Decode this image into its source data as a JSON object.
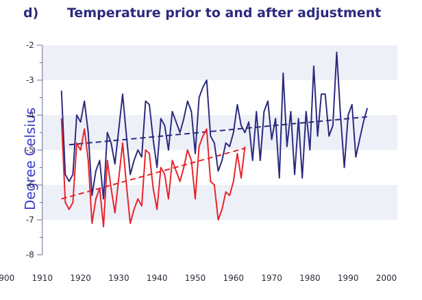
{
  "panel_label": "d)",
  "chart_data": {
    "type": "line",
    "title": "Temperature prior to and after adjustment",
    "xlabel": "",
    "ylabel": "Degree Celsius",
    "xlim": [
      1900,
      2000
    ],
    "ylim": [
      -8,
      -2
    ],
    "x_ticks": [
      1900,
      1910,
      1920,
      1930,
      1940,
      1950,
      1960,
      1970,
      1980,
      1990,
      2000
    ],
    "y_ticks": [
      -8,
      -7,
      -6,
      -5,
      -4,
      -3,
      -2
    ],
    "x_tick_labels": [
      "1900",
      "1910",
      "1920",
      "1930",
      "1940",
      "1950",
      "1960",
      "1970",
      "1980",
      "1990",
      "2000"
    ],
    "y_tick_labels": [
      "-8",
      "-7",
      "-6",
      "-5",
      "-4",
      "-3",
      "-2"
    ],
    "background_bands": true,
    "grid": false,
    "colors": {
      "adjusted": "#2b2a7e",
      "raw": "#e8232a",
      "band": "#eef0f8",
      "axis": "#6d6d9a"
    },
    "series": [
      {
        "color": "#2b2a7e",
        "x": [
          1915,
          1916,
          1917,
          1918,
          1919,
          1920,
          1921,
          1922,
          1923,
          1924,
          1925,
          1926,
          1927,
          1928,
          1929,
          1930,
          1931,
          1932,
          1933,
          1934,
          1935,
          1936,
          1937,
          1938,
          1939,
          1940,
          1941,
          1942,
          1943,
          1944,
          1945,
          1946,
          1947,
          1948,
          1949,
          1950,
          1951,
          1952,
          1953,
          1954,
          1955,
          1956,
          1957,
          1958,
          1959,
          1960,
          1961,
          1962,
          1963,
          1964,
          1965,
          1966,
          1967,
          1968,
          1969,
          1970,
          1971,
          1972,
          1973,
          1974,
          1975,
          1976,
          1977,
          1978,
          1979,
          1980,
          1981,
          1982,
          1983,
          1984,
          1985,
          1986,
          1987,
          1988,
          1989,
          1990,
          1991,
          1992,
          1993,
          1994,
          1995
        ],
        "values": [
          -3.3,
          -5.7,
          -5.9,
          -5.7,
          -4.0,
          -4.2,
          -3.6,
          -4.5,
          -6.3,
          -5.6,
          -5.3,
          -6.4,
          -4.5,
          -4.8,
          -5.4,
          -4.4,
          -3.4,
          -4.6,
          -5.7,
          -5.3,
          -5.0,
          -5.2,
          -3.6,
          -3.7,
          -4.7,
          -5.5,
          -4.1,
          -4.3,
          -5.0,
          -3.9,
          -4.2,
          -4.5,
          -4.1,
          -3.6,
          -3.9,
          -5.1,
          -3.5,
          -3.2,
          -3.0,
          -4.6,
          -4.8,
          -5.6,
          -5.3,
          -4.8,
          -4.9,
          -4.5,
          -3.7,
          -4.3,
          -4.5,
          -4.2,
          -5.3,
          -3.9,
          -5.3,
          -3.9,
          -3.6,
          -4.7,
          -4.1,
          -5.8,
          -2.8,
          -4.9,
          -3.9,
          -5.7,
          -4.1,
          -5.8,
          -3.9,
          -5.0,
          -2.6,
          -4.6,
          -3.4,
          -3.4,
          -4.6,
          -4.3,
          -2.2,
          -4.0,
          -5.5,
          -4.0,
          -3.7,
          -5.2,
          -4.7,
          -4.2,
          -3.8
        ]
      },
      {
        "color": "#e8232a",
        "x": [
          1915,
          1916,
          1917,
          1918,
          1919,
          1920,
          1921,
          1922,
          1923,
          1924,
          1925,
          1926,
          1927,
          1928,
          1929,
          1930,
          1931,
          1932,
          1933,
          1934,
          1935,
          1936,
          1937,
          1938,
          1939,
          1940,
          1941,
          1942,
          1943,
          1944,
          1945,
          1946,
          1947,
          1948,
          1949,
          1950,
          1951,
          1952,
          1953,
          1954,
          1955,
          1956,
          1957,
          1958,
          1959,
          1960,
          1961,
          1962,
          1963
        ],
        "values": [
          -4.1,
          -6.5,
          -6.7,
          -6.5,
          -4.8,
          -5.0,
          -4.4,
          -5.3,
          -7.1,
          -6.4,
          -6.1,
          -7.2,
          -5.3,
          -6.1,
          -6.8,
          -5.8,
          -4.8,
          -6.0,
          -7.1,
          -6.7,
          -6.4,
          -6.6,
          -5.0,
          -5.1,
          -6.1,
          -6.7,
          -5.5,
          -5.7,
          -6.4,
          -5.3,
          -5.6,
          -5.9,
          -5.5,
          -5.0,
          -5.3,
          -6.4,
          -4.9,
          -4.6,
          -4.4,
          -5.9,
          -6.0,
          -7.0,
          -6.7,
          -6.2,
          -6.3,
          -5.9,
          -5.1,
          -5.8,
          -4.9
        ]
      }
    ],
    "trend_lines": [
      {
        "color": "#2b2a7e",
        "style": "dashed",
        "x": [
          1917,
          1995
        ],
        "values": [
          -4.85,
          -4.05
        ]
      },
      {
        "color": "#e8232a",
        "style": "dashed",
        "x": [
          1915,
          1963
        ],
        "values": [
          -6.4,
          -4.95
        ]
      }
    ]
  }
}
